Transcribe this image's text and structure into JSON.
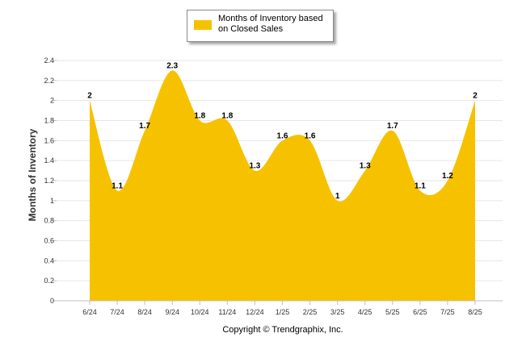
{
  "chart_data": {
    "type": "area",
    "legend": {
      "label": "Months of Inventory based on Closed Sales",
      "position": "top-center"
    },
    "ylabel": "Months of Inventory",
    "xlabel": "",
    "categories": [
      "6/24",
      "7/24",
      "8/24",
      "9/24",
      "10/24",
      "11/24",
      "12/24",
      "1/25",
      "2/25",
      "3/25",
      "4/25",
      "5/25",
      "6/25",
      "7/25",
      "8/25"
    ],
    "series": [
      {
        "name": "Months of Inventory based on Closed Sales",
        "values": [
          2,
          1.1,
          1.7,
          2.3,
          1.8,
          1.8,
          1.3,
          1.6,
          1.6,
          1,
          1.3,
          1.7,
          1.1,
          1.2,
          2
        ],
        "data_labels": [
          "2",
          "1.1",
          "1.7",
          "2.3",
          "1.8",
          "1.8",
          "1.3",
          "1.6",
          "1.6",
          "1",
          "1.3",
          "1.7",
          "1.1",
          "1.2",
          "2"
        ]
      }
    ],
    "ylim": [
      0,
      2.4
    ],
    "yticks": [
      0,
      0.2,
      0.4,
      0.6,
      0.8,
      1,
      1.2,
      1.4,
      1.6,
      1.8,
      2,
      2.2,
      2.4
    ],
    "ytick_labels": [
      "0",
      "0.2",
      "0.4",
      "0.6",
      "0.8",
      "1",
      "1.2",
      "1.4",
      "1.6",
      "1.8",
      "2",
      "2.2",
      "2.4"
    ],
    "grid": true,
    "colors": {
      "area": "#f6c200",
      "grid": "#e6e6e6",
      "axis": "#c0c0c0"
    }
  },
  "footer": {
    "copyright": "Copyright © Trendgraphix, Inc."
  }
}
